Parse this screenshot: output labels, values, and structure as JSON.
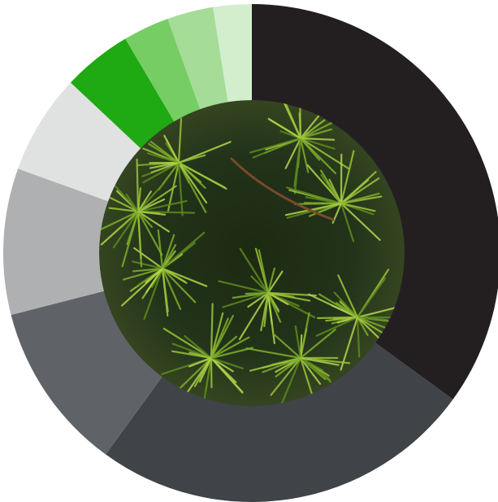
{
  "chart_data": {
    "type": "donut",
    "values": [
      35,
      25,
      11,
      9.5,
      6.5,
      4.5,
      3,
      3,
      2.5
    ],
    "colors": [
      "#231f20",
      "#404347",
      "#5f6266",
      "#aeb0b1",
      "#e0e1e1",
      "#1fa913",
      "#76cd64",
      "#a5dc97",
      "#d3eecc"
    ]
  }
}
